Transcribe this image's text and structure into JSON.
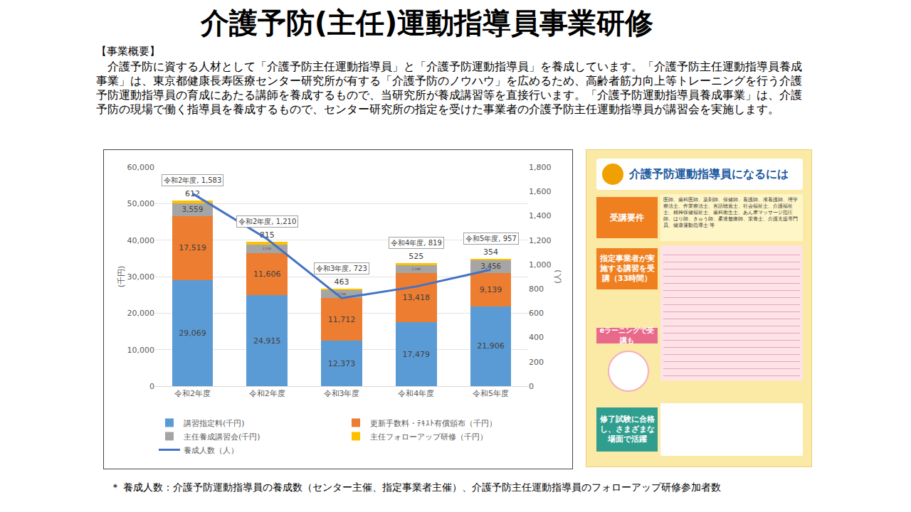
{
  "title": "介護予防(主任)運動指導員事業研修",
  "section": "【事業概要】",
  "body": "　介護予防に資する人材として「介護予防主任運動指導員」と「介護予防運動指導員」を養成しています。「介護予防主任運動指導員養成事業」は、東京都健康長寿医療センター研究所が有する「介護予防のノウハウ」を広めるため、高齢者筋力向上等トレーニングを行う介護予防運動指導員の育成にあたる講師を養成するもので、当研究所が養成講習等を直接行います。「介護予防運動指導員養成事業」は、介護予防の現場で働く指導員を養成するもので、センター研究所の指定を受けた事業者の介護予防主任運動指導員が講習会を実施します。",
  "chart_data": {
    "type": "bar",
    "stacked": true,
    "grid": true,
    "legend": "bottom",
    "data_labels": true,
    "categories": [
      "令和2年度",
      "令和2年度",
      "令和3年度",
      "令和4年度",
      "令和5年度"
    ],
    "y_label": "(千円)",
    "y2_label": "(人)",
    "ylim": [
      0,
      60000
    ],
    "yticks": [
      0,
      {
        "value": 10000,
        "label": "10,000"
      },
      {
        "value": 20000,
        "label": "20,000"
      },
      {
        "value": 30000,
        "label": "30,000"
      },
      {
        "value": 40000,
        "label": "40,000"
      },
      {
        "value": 50000,
        "label": "50,000"
      },
      {
        "value": 60000,
        "label": "60,000"
      }
    ],
    "y2lim": [
      0,
      1800
    ],
    "y2ticks": [
      0,
      200,
      400,
      600,
      800,
      {
        "value": 1000,
        "label": "1,000"
      },
      {
        "value": 1200,
        "label": "1,200"
      },
      {
        "value": 1400,
        "label": "1,400"
      },
      {
        "value": 1600,
        "label": "1,600"
      },
      {
        "value": 1800,
        "label": "1,800"
      }
    ],
    "series": [
      {
        "name": "講習指定料(千円)",
        "type": "bar",
        "color": "#5B9BD5",
        "values": [
          29069,
          24915,
          12373,
          17479,
          21906
        ],
        "value_labels": [
          "29,069",
          "24,915",
          "12,373",
          "17,479",
          "21,906"
        ]
      },
      {
        "name": "更新手数料・ﾃｷｽﾄ有償頒布（千円）",
        "type": "bar",
        "color": "#ED7D31",
        "values": [
          17519,
          11606,
          11712,
          13418,
          9139
        ],
        "value_labels": [
          "17,519",
          "11,606",
          "11,712",
          "13,418",
          "9,139"
        ]
      },
      {
        "name": "主任養成講習会(千円)",
        "type": "bar",
        "color": "#A5A5A5",
        "values": [
          3559,
          2155,
          2146,
          2199,
          3456
        ],
        "value_labels": [
          "3,559",
          "2,155",
          "2,146",
          "2,199",
          "3,456"
        ]
      },
      {
        "name": "主任フォローアップ研修（千円）",
        "type": "bar",
        "color": "#FFC000",
        "values": [
          612,
          815,
          463,
          525,
          354
        ],
        "value_labels": [
          "612",
          "815",
          "463",
          "525",
          "354"
        ]
      },
      {
        "name": "養成人数（人）",
        "type": "line",
        "axis": "y2",
        "color": "#4472C4",
        "line_style": "solid",
        "values": [
          1583,
          1210,
          723,
          819,
          957
        ],
        "value_labels": [
          "令和2年度, 1,583",
          "令和2年度, 1,210",
          "令和3年度, 723",
          "令和4年度, 819",
          "令和5年度, 957"
        ]
      }
    ]
  },
  "flyer": {
    "heading": "介護予防運動指導員になるには",
    "requirement_label": "受講要件",
    "requirement_text": "医師、歯科医師、薬剤師、保健師、看護師、准看護師、理学療法士、作業療法士、言語聴覚士、社会福祉士、介護福祉士、精神保健福祉士、歯科衛生士、あん摩マッサージ指圧師、はり師、きゅう師、柔道整復師、栄養士、介護支援専門員、健康運動指導士 等",
    "course_label": "指定事業者が実施する講習を受講（33時間）",
    "elearning_label": "eラーニングで受講も",
    "finish_label": "修了試験に合格し、さまざまな場面で活躍"
  },
  "footnote": "＊ 養成人数：介護予防運動指導員の養成数（センター主催、指定事業者主催）、介護予防主任運動指導員のフォローアップ研修参加者数"
}
